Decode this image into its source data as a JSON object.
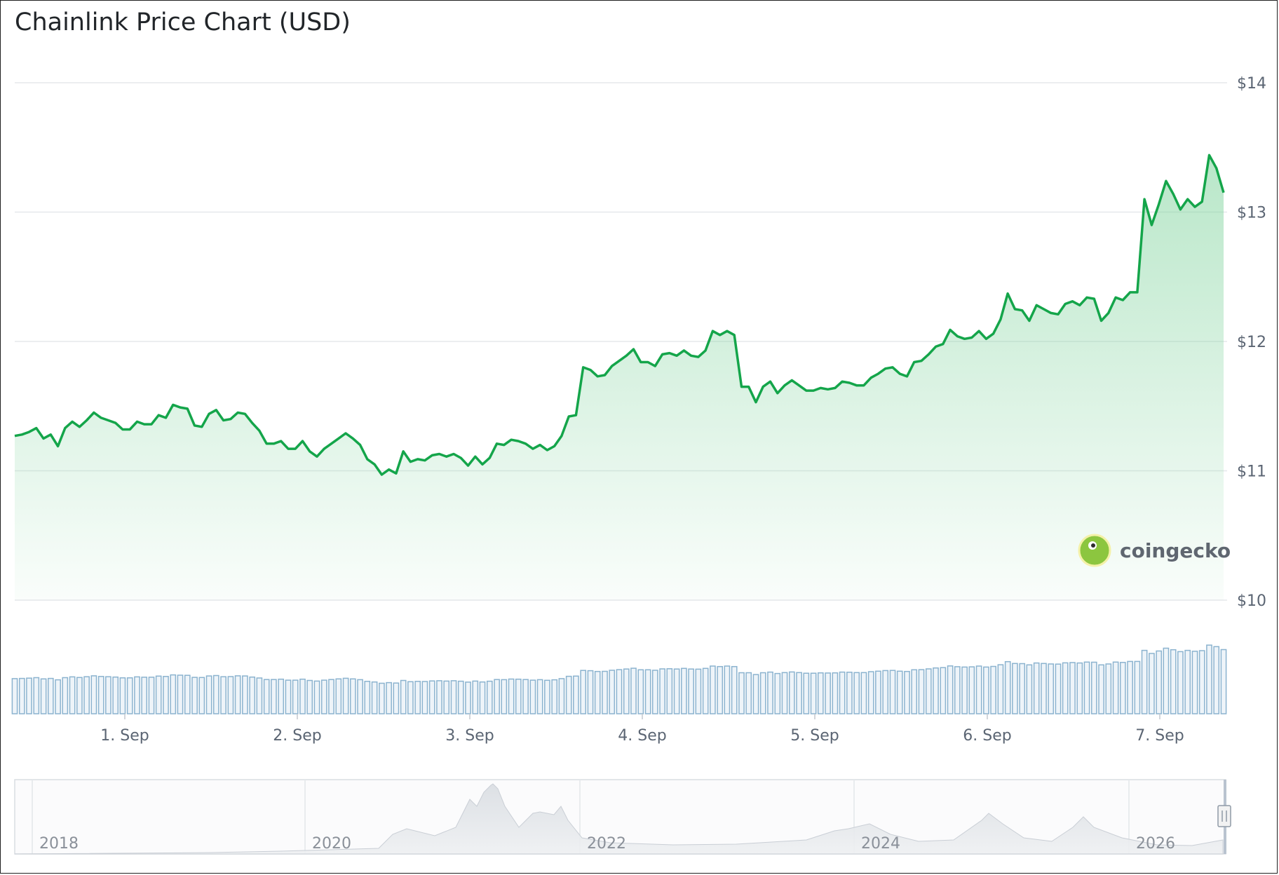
{
  "title": "Chainlink Price Chart (USD)",
  "watermark": "coingecko",
  "colors": {
    "line": "#14a54a",
    "fill": "#8fd9a8",
    "volume_bar": "#8bb3cf",
    "grid": "#e6e8eb"
  },
  "chart_data": {
    "type": "line",
    "title": "Chainlink Price Chart (USD)",
    "y_tick_labels": [
      "$14",
      "$13",
      "$12",
      "$11",
      "$10"
    ],
    "y_ticks": [
      14,
      13,
      12,
      11,
      10
    ],
    "ylim": [
      10,
      14
    ],
    "x_tick_labels": [
      "1. Sep",
      "2. Sep",
      "3. Sep",
      "4. Sep",
      "5. Sep",
      "6. Sep",
      "7. Sep"
    ],
    "grid": true,
    "series": [
      {
        "values": [
          11.27,
          11.28,
          11.3,
          11.33,
          11.25,
          11.28,
          11.19,
          11.33,
          11.38,
          11.34,
          11.39,
          11.45,
          11.41,
          11.39,
          11.37,
          11.32,
          11.32,
          11.38,
          11.36,
          11.36,
          11.43,
          11.41,
          11.51,
          11.49,
          11.48,
          11.35,
          11.34,
          11.44,
          11.47,
          11.39,
          11.4,
          11.45,
          11.44,
          11.37,
          11.31,
          11.21,
          11.21,
          11.23,
          11.17,
          11.17,
          11.23,
          11.15,
          11.11,
          11.17,
          11.21,
          11.25,
          11.29,
          11.25,
          11.2,
          11.09,
          11.05,
          10.97,
          11.01,
          10.98,
          11.15,
          11.07,
          11.09,
          11.08,
          11.12,
          11.13,
          11.11,
          11.13,
          11.1,
          11.04,
          11.11,
          11.05,
          11.1,
          11.21,
          11.2,
          11.24,
          11.23,
          11.21,
          11.17,
          11.2,
          11.16,
          11.19,
          11.27,
          11.42,
          11.43,
          11.8,
          11.78,
          11.73,
          11.74,
          11.81,
          11.85,
          11.89,
          11.94,
          11.84,
          11.84,
          11.81,
          11.9,
          11.91,
          11.89,
          11.93,
          11.89,
          11.88,
          11.93,
          12.08,
          12.05,
          12.08,
          12.05,
          11.65,
          11.65,
          11.53,
          11.65,
          11.69,
          11.6,
          11.66,
          11.7,
          11.66,
          11.62,
          11.62,
          11.64,
          11.63,
          11.64,
          11.69,
          11.68,
          11.66,
          11.66,
          11.72,
          11.75,
          11.79,
          11.8,
          11.75,
          11.73,
          11.84,
          11.85,
          11.9,
          11.96,
          11.98,
          12.09,
          12.04,
          12.02,
          12.03,
          12.08,
          12.02,
          12.06,
          12.17,
          12.37,
          12.25,
          12.24,
          12.16,
          12.28,
          12.25,
          12.22,
          12.21,
          12.29,
          12.31,
          12.28,
          12.34,
          12.33,
          12.16,
          12.22,
          12.34,
          12.32,
          12.38,
          12.38,
          13.1,
          12.9,
          13.06,
          13.24,
          13.14,
          13.02,
          13.1,
          13.04,
          13.08,
          13.44,
          13.34,
          13.15
        ]
      }
    ]
  },
  "navigator": {
    "tick_labels": [
      "2018",
      "2020",
      "2022",
      "2024",
      "2026"
    ]
  }
}
